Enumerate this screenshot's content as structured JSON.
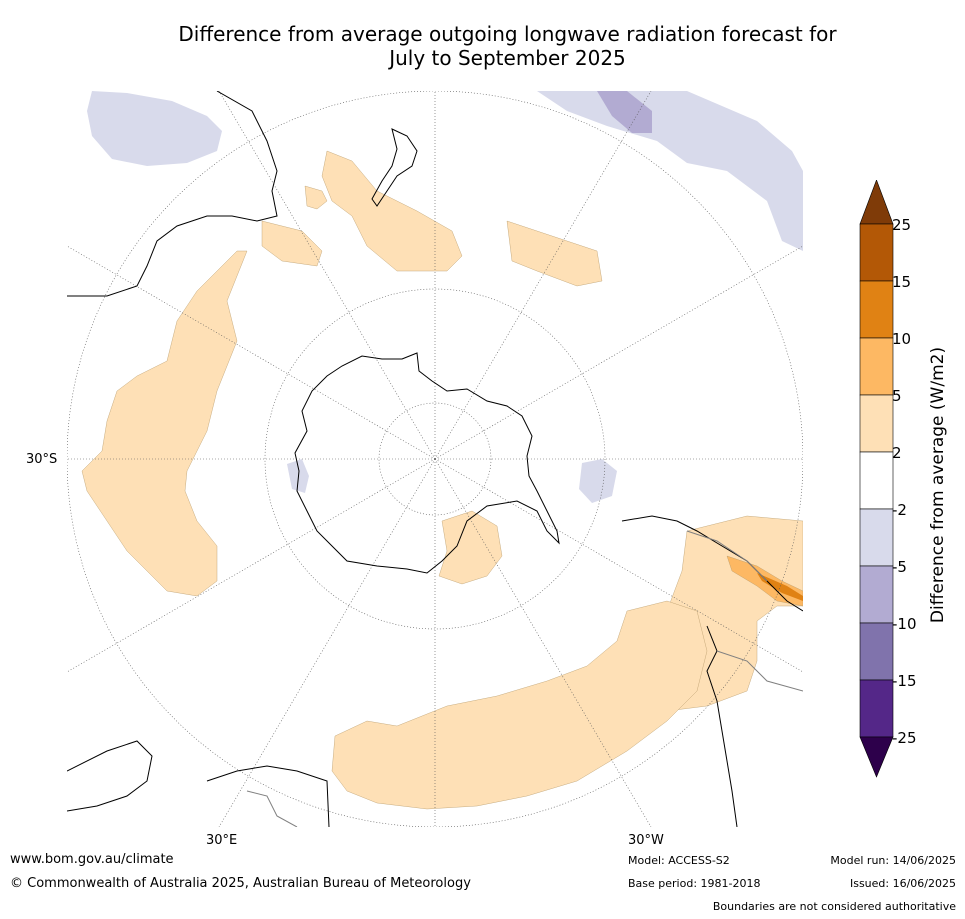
{
  "title": {
    "line1": "Difference from average outgoing longwave radiation forecast for",
    "line2": "July to September 2025"
  },
  "map": {
    "projection": "south-polar-stereographic",
    "lat_labels": [
      "30°S"
    ],
    "lon_labels": [
      "30°E",
      "30°W"
    ],
    "colors": {
      "land_outline": "#000000",
      "graticule": "#555555",
      "border_outline": "#808080"
    }
  },
  "colorbar": {
    "label": "Difference from average (W/m2)",
    "ticks": [
      "25",
      "15",
      "10",
      "5",
      "2",
      "-2",
      "-5",
      "-10",
      "-15",
      "-25"
    ],
    "bins": [
      {
        "range": "> 25",
        "color": "#7f3b08"
      },
      {
        "range": "15 to 25",
        "color": "#b35806"
      },
      {
        "range": "10 to 15",
        "color": "#e08214"
      },
      {
        "range": "5 to 10",
        "color": "#fdb863"
      },
      {
        "range": "2 to 5",
        "color": "#fee0b6"
      },
      {
        "range": "-2 to 2",
        "color": "#ffffff"
      },
      {
        "range": "-5 to -2",
        "color": "#d8daeb"
      },
      {
        "range": "-10 to -5",
        "color": "#b2abd2"
      },
      {
        "range": "-15 to -10",
        "color": "#8073ac"
      },
      {
        "range": "-25 to -15",
        "color": "#542788"
      },
      {
        "range": "< -25",
        "color": "#2d004b"
      }
    ]
  },
  "footer": {
    "website": "www.bom.gov.au/climate",
    "copyright": "© Commonwealth of Australia 2025, Australian Bureau of Meteorology",
    "model": "Model: ACCESS-S2",
    "base_period": "Base period: 1981-2018",
    "model_run": "Model run: 14/06/2025",
    "issued": "Issued: 16/06/2025",
    "disclaimer": "Boundaries are not considered authoritative"
  }
}
